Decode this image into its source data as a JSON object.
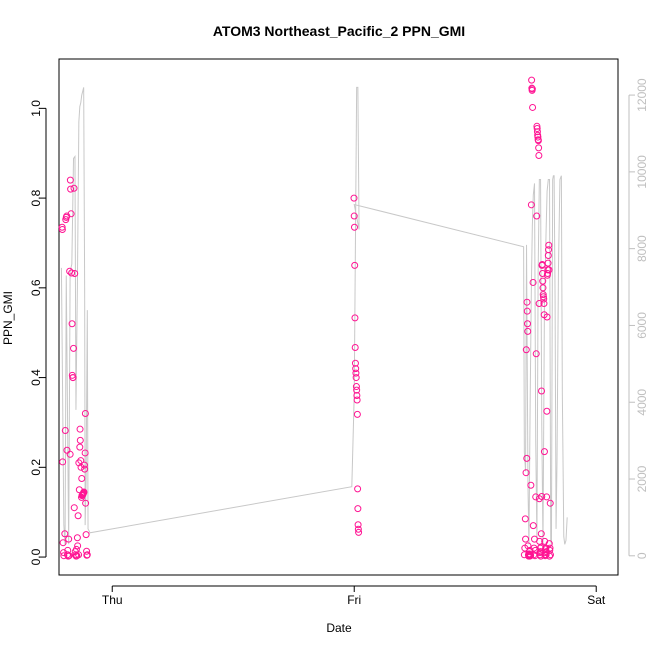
{
  "chart_data": {
    "type": "scatter",
    "title": "ATOM3 Northeast_Pacific_2 PPN_GMI",
    "xlabel": "Date",
    "ylabel": "PPN_GMI",
    "x_ticks": [
      {
        "label": "Thu",
        "value": 1.0
      },
      {
        "label": "Fri",
        "value": 2.0
      },
      {
        "label": "Sat",
        "value": 3.0
      }
    ],
    "xlim": [
      0.78,
      3.09
    ],
    "ylim": [
      -0.04,
      1.11
    ],
    "y_ticks": [
      0.0,
      0.2,
      0.4,
      0.6,
      0.8,
      1.0
    ],
    "y_tick_labels": [
      "0.0",
      "0.2",
      "0.4",
      "0.6",
      "0.8",
      "1.0"
    ],
    "y2lim": [
      -500,
      12940
    ],
    "y2_ticks": [
      0,
      2000,
      4000,
      6000,
      8000,
      10000,
      12000
    ],
    "y2_tick_labels": [
      "0",
      "2000",
      "4000",
      "6000",
      "8000",
      "10000",
      "12000"
    ],
    "colors": {
      "points": "#ff1493",
      "line": "#c8c8c8",
      "right_axis": "#bfbfbf",
      "axes": "#000000"
    },
    "series": [
      {
        "kind": "points",
        "axis": "left",
        "values": [
          [
            0.793,
            0.735
          ],
          [
            0.794,
            0.73
          ],
          [
            0.795,
            0.212
          ],
          [
            0.797,
            0.032
          ],
          [
            0.799,
            0.01
          ],
          [
            0.8,
            0.003
          ],
          [
            0.804,
            0.052
          ],
          [
            0.806,
            0.282
          ],
          [
            0.808,
            0.752
          ],
          [
            0.81,
            0.757
          ],
          [
            0.812,
            0.76
          ],
          [
            0.813,
            0.238
          ],
          [
            0.815,
            0.005
          ],
          [
            0.816,
            0.015
          ],
          [
            0.818,
            0.002
          ],
          [
            0.82,
            0.04
          ],
          [
            0.822,
            0.003
          ],
          [
            0.824,
            0.637
          ],
          [
            0.826,
            0.229
          ],
          [
            0.827,
            0.84
          ],
          [
            0.828,
            0.82
          ],
          [
            0.83,
            0.765
          ],
          [
            0.832,
            0.633
          ],
          [
            0.834,
            0.52
          ],
          [
            0.835,
            0.405
          ],
          [
            0.837,
            0.4
          ],
          [
            0.838,
            0.4
          ],
          [
            0.84,
            0.465
          ],
          [
            0.842,
            0.822
          ],
          [
            0.843,
            0.11
          ],
          [
            0.845,
            0.632
          ],
          [
            0.847,
            0.012
          ],
          [
            0.849,
            0.005
          ],
          [
            0.851,
            0.002
          ],
          [
            0.852,
            0.017
          ],
          [
            0.854,
            0.003
          ],
          [
            0.856,
            0.043
          ],
          [
            0.857,
            0.025
          ],
          [
            0.859,
            0.092
          ],
          [
            0.861,
            0.005
          ],
          [
            0.862,
            0.21
          ],
          [
            0.864,
            0.15
          ],
          [
            0.866,
            0.245
          ],
          [
            0.867,
            0.285
          ],
          [
            0.868,
            0.26
          ],
          [
            0.87,
            0.215
          ],
          [
            0.871,
            0.2
          ],
          [
            0.873,
            0.133
          ],
          [
            0.874,
            0.175
          ],
          [
            0.875,
            0.137
          ],
          [
            0.877,
            0.138
          ],
          [
            0.878,
            0.14
          ],
          [
            0.879,
            0.14
          ],
          [
            0.88,
            0.142
          ],
          [
            0.882,
            0.143
          ],
          [
            0.883,
            0.145
          ],
          [
            0.885,
            0.205
          ],
          [
            0.886,
            0.196
          ],
          [
            0.888,
            0.232
          ],
          [
            0.889,
            0.32
          ],
          [
            0.89,
            0.12
          ],
          [
            0.892,
            0.05
          ],
          [
            0.894,
            0.013
          ],
          [
            0.895,
            0.004
          ],
          [
            0.897,
            0.005
          ],
          [
            1.999,
            0.8
          ],
          [
            2.0,
            0.76
          ],
          [
            2.001,
            0.735
          ],
          [
            2.002,
            0.65
          ],
          [
            2.003,
            0.533
          ],
          [
            2.004,
            0.467
          ],
          [
            2.005,
            0.432
          ],
          [
            2.006,
            0.42
          ],
          [
            2.007,
            0.41
          ],
          [
            2.008,
            0.4
          ],
          [
            2.009,
            0.38
          ],
          [
            2.01,
            0.372
          ],
          [
            2.011,
            0.36
          ],
          [
            2.012,
            0.35
          ],
          [
            2.013,
            0.318
          ],
          [
            2.014,
            0.152
          ],
          [
            2.015,
            0.108
          ],
          [
            2.016,
            0.072
          ],
          [
            2.017,
            0.062
          ],
          [
            2.018,
            0.055
          ],
          [
            2.703,
            0.005
          ],
          [
            2.705,
            0.02
          ],
          [
            2.707,
            0.085
          ],
          [
            2.708,
            0.04
          ],
          [
            2.71,
            0.188
          ],
          [
            2.711,
            0.462
          ],
          [
            2.713,
            0.22
          ],
          [
            2.714,
            0.568
          ],
          [
            2.715,
            0.548
          ],
          [
            2.716,
            0.52
          ],
          [
            2.717,
            0.503
          ],
          [
            2.718,
            0.025
          ],
          [
            2.72,
            0.005
          ],
          [
            2.721,
            0.002
          ],
          [
            2.723,
            0.007
          ],
          [
            2.724,
            0.012
          ],
          [
            2.725,
            0.002
          ],
          [
            2.726,
            0.015
          ],
          [
            2.727,
            0.006
          ],
          [
            2.728,
            0.004
          ],
          [
            2.729,
            0.003
          ],
          [
            2.73,
            0.16
          ],
          [
            2.732,
            0.785
          ],
          [
            2.733,
            1.063
          ],
          [
            2.734,
            1.045
          ],
          [
            2.735,
            1.04
          ],
          [
            2.736,
            1.043
          ],
          [
            2.737,
            1.002
          ],
          [
            2.739,
            0.612
          ],
          [
            2.74,
            0.07
          ],
          [
            2.742,
            0.005
          ],
          [
            2.743,
            0.02
          ],
          [
            2.745,
            0.04
          ],
          [
            2.747,
            0.003
          ],
          [
            2.749,
            0.015
          ],
          [
            2.75,
            0.134
          ],
          [
            2.752,
            0.453
          ],
          [
            2.754,
            0.76
          ],
          [
            2.755,
            0.96
          ],
          [
            2.756,
            0.955
          ],
          [
            2.757,
            0.948
          ],
          [
            2.758,
            0.94
          ],
          [
            2.759,
            0.936
          ],
          [
            2.76,
            0.93
          ],
          [
            2.761,
            0.928
          ],
          [
            2.762,
            0.912
          ],
          [
            2.763,
            0.895
          ],
          [
            2.764,
            0.565
          ],
          [
            2.765,
            0.13
          ],
          [
            2.766,
            0.035
          ],
          [
            2.767,
            0.01
          ],
          [
            2.768,
            0.005
          ],
          [
            2.769,
            0.02
          ],
          [
            2.77,
            0.012
          ],
          [
            2.771,
            0.002
          ],
          [
            2.772,
            0.022
          ],
          [
            2.773,
            0.052
          ],
          [
            2.774,
            0.37
          ],
          [
            2.775,
            0.135
          ],
          [
            2.776,
            0.65
          ],
          [
            2.777,
            0.652
          ],
          [
            2.778,
            0.632
          ],
          [
            2.779,
            0.615
          ],
          [
            2.78,
            0.6
          ],
          [
            2.781,
            0.585
          ],
          [
            2.782,
            0.58
          ],
          [
            2.783,
            0.575
          ],
          [
            2.784,
            0.565
          ],
          [
            2.785,
            0.54
          ],
          [
            2.786,
            0.235
          ],
          [
            2.787,
            0.035
          ],
          [
            2.788,
            0.005
          ],
          [
            2.789,
            0.003
          ],
          [
            2.79,
            0.018
          ],
          [
            2.791,
            0.01
          ],
          [
            2.792,
            0.02
          ],
          [
            2.793,
            0.005
          ],
          [
            2.794,
            0.012
          ],
          [
            2.795,
            0.134
          ],
          [
            2.796,
            0.325
          ],
          [
            2.797,
            0.535
          ],
          [
            2.798,
            0.628
          ],
          [
            2.799,
            0.632
          ],
          [
            2.8,
            0.64
          ],
          [
            2.801,
            0.655
          ],
          [
            2.802,
            0.672
          ],
          [
            2.803,
            0.685
          ],
          [
            2.804,
            0.695
          ],
          [
            2.805,
            0.64
          ],
          [
            2.806,
            0.03
          ],
          [
            2.807,
            0.002
          ],
          [
            2.808,
            0.015
          ],
          [
            2.809,
            0.02
          ],
          [
            2.81,
            0.12
          ],
          [
            2.811,
            0.005
          ]
        ]
      },
      {
        "kind": "line",
        "axis": "right",
        "values": [
          [
            0.79,
            7500
          ],
          [
            0.8,
            800
          ],
          [
            0.805,
            300
          ],
          [
            0.81,
            7300
          ],
          [
            0.82,
            300
          ],
          [
            0.826,
            7400
          ],
          [
            0.833,
            7600
          ],
          [
            0.84,
            10350
          ],
          [
            0.846,
            10400
          ],
          [
            0.85,
            3800
          ],
          [
            0.856,
            7000
          ],
          [
            0.862,
            11300
          ],
          [
            0.866,
            11700
          ],
          [
            0.87,
            11800
          ],
          [
            0.874,
            12000
          ],
          [
            0.878,
            12100
          ],
          [
            0.882,
            12200
          ],
          [
            0.886,
            7000
          ],
          [
            0.888,
            800
          ],
          [
            0.892,
            2000
          ],
          [
            0.897,
            6400
          ],
          [
            0.9,
            700
          ],
          [
            0.908,
            600
          ],
          [
            1.99,
            1800
          ],
          [
            2.0,
            4200
          ],
          [
            2.01,
            12200
          ],
          [
            2.015,
            12200
          ],
          [
            2.02,
            8500
          ],
          [
            2.0,
            9150
          ],
          [
            2.7,
            8050
          ],
          [
            2.703,
            2700
          ],
          [
            2.708,
            2200
          ],
          [
            2.712,
            8100
          ],
          [
            2.718,
            1800
          ],
          [
            2.722,
            300
          ],
          [
            2.727,
            4000
          ],
          [
            2.732,
            7000
          ],
          [
            2.736,
            8600
          ],
          [
            2.74,
            9400
          ],
          [
            2.745,
            9700
          ],
          [
            2.75,
            3000
          ],
          [
            2.755,
            400
          ],
          [
            2.76,
            7400
          ],
          [
            2.765,
            9800
          ],
          [
            2.77,
            9800
          ],
          [
            2.775,
            3400
          ],
          [
            2.78,
            300
          ],
          [
            2.786,
            6500
          ],
          [
            2.793,
            8500
          ],
          [
            2.797,
            9500
          ],
          [
            2.802,
            9800
          ],
          [
            2.807,
            9800
          ],
          [
            2.812,
            400
          ],
          [
            2.815,
            300
          ],
          [
            2.82,
            9800
          ],
          [
            2.823,
            9900
          ],
          [
            2.826,
            9900
          ],
          [
            2.83,
            6700
          ],
          [
            2.834,
            700
          ],
          [
            2.838,
            2500
          ],
          [
            2.844,
            7500
          ],
          [
            2.85,
            9800
          ],
          [
            2.856,
            9900
          ],
          [
            2.86,
            4200
          ],
          [
            2.866,
            500
          ],
          [
            2.87,
            300
          ],
          [
            2.875,
            400
          ],
          [
            2.88,
            1000
          ]
        ]
      }
    ]
  }
}
